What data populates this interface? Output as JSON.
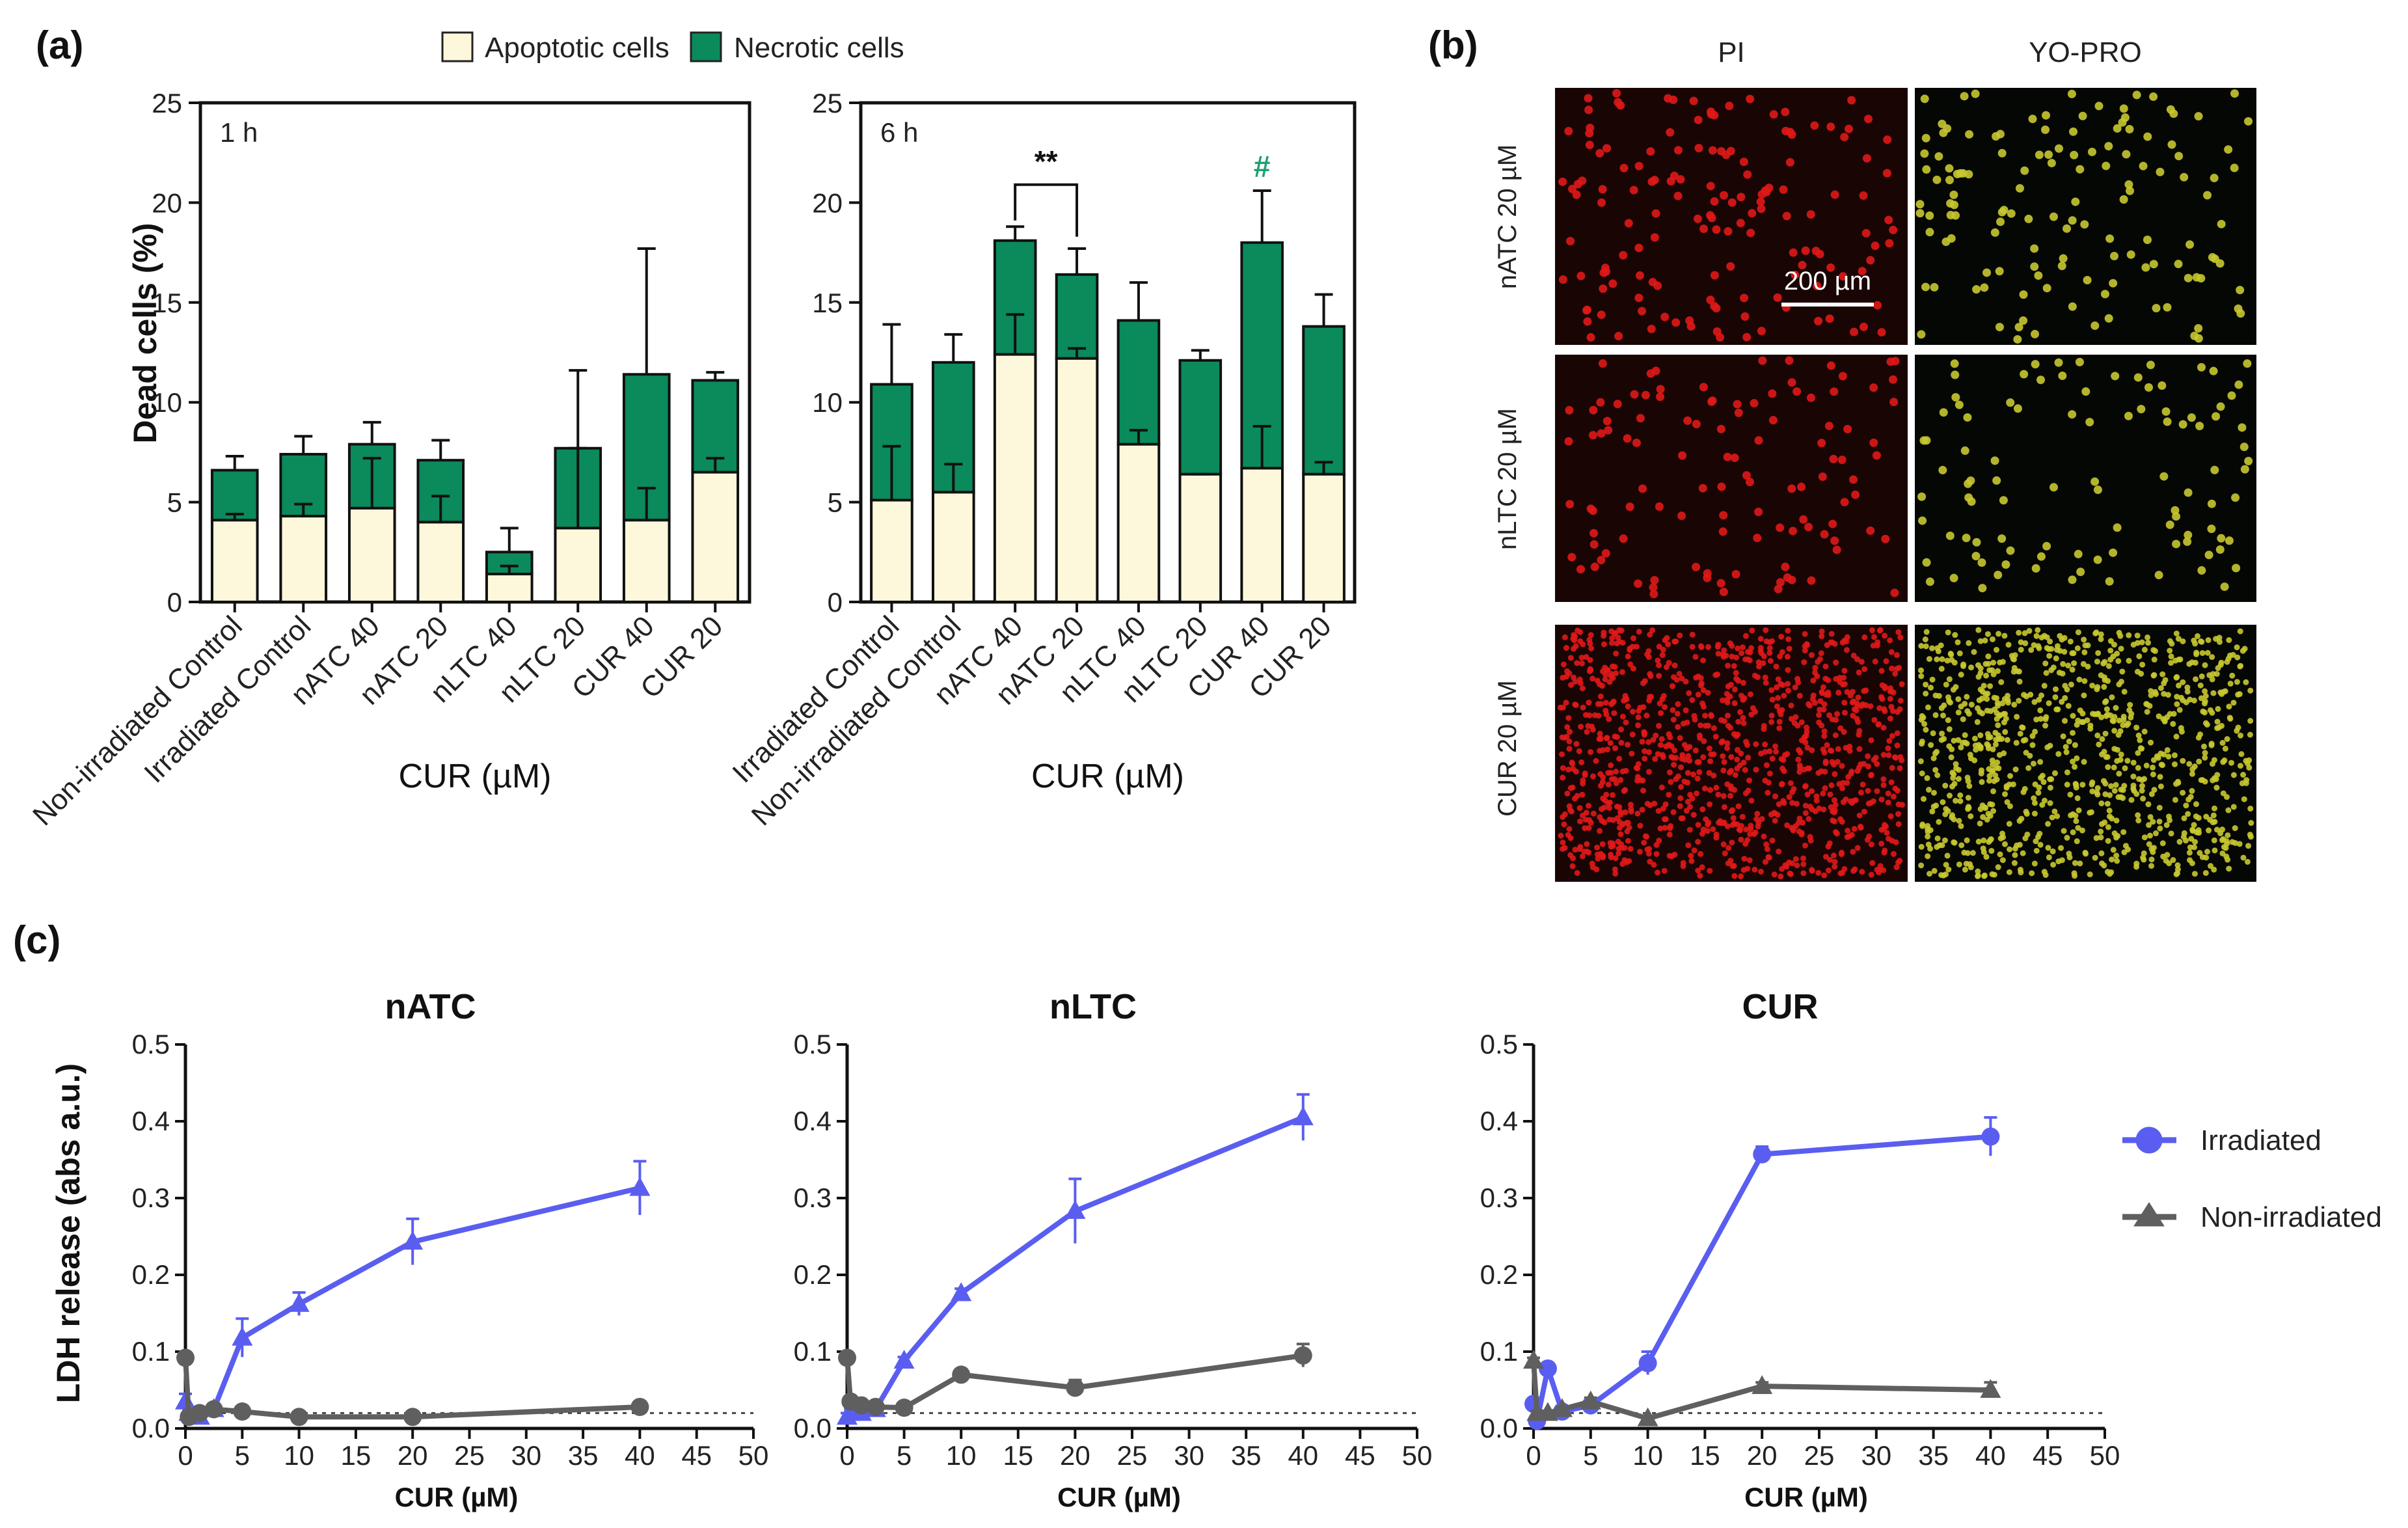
{
  "panels": {
    "a": "(a)",
    "b": "(b)",
    "c": "(c)"
  },
  "colors": {
    "apoptotic": "#fdf8dc",
    "necrotic": "#0b8a5c",
    "irradiated": "#5a5ef0",
    "non_irradiated": "#5f5f5f",
    "hash_mark": "#20a070"
  },
  "legend_a": {
    "apoptotic": "Apoptotic cells",
    "necrotic": "Necrotic cells"
  },
  "legend_c": {
    "irradiated": "Irradiated",
    "non_irradiated": "Non-irradiated"
  },
  "chart_data": [
    {
      "id": "a1",
      "type": "bar",
      "stacked": true,
      "annotation": "1 h",
      "categories": [
        "Non-irradiated Control",
        "Irradiated Control",
        "nATC 40",
        "nATC 20",
        "nLTC 40",
        "nLTC 20",
        "CUR 40",
        "CUR 20"
      ],
      "series": [
        {
          "name": "Apoptotic cells",
          "values": [
            4.1,
            4.3,
            4.7,
            4.0,
            1.4,
            3.7,
            4.1,
            6.5
          ],
          "errors": [
            0.3,
            0.6,
            2.5,
            1.3,
            0.4,
            4.0,
            1.6,
            0.7
          ]
        },
        {
          "name": "Necrotic cells",
          "values": [
            2.5,
            3.1,
            3.2,
            3.1,
            1.1,
            4.0,
            7.3,
            4.6
          ],
          "errors": [
            0.7,
            0.9,
            1.1,
            1.0,
            1.2,
            3.9,
            6.3,
            0.4
          ]
        }
      ],
      "xlabel": "CUR (µM)",
      "ylabel": "Dead cells (%)",
      "ylim": [
        0,
        25
      ],
      "yticks": [
        0,
        5,
        10,
        15,
        20,
        25
      ]
    },
    {
      "id": "a2",
      "type": "bar",
      "stacked": true,
      "annotation": "6 h",
      "categories": [
        "Irradiated Control",
        "Non-irradiated Control",
        "nATC 40",
        "nATC 20",
        "nLTC 40",
        "nLTC 20",
        "CUR 40",
        "CUR 20"
      ],
      "series": [
        {
          "name": "Apoptotic cells",
          "values": [
            5.1,
            5.5,
            12.4,
            12.2,
            7.9,
            6.4,
            6.7,
            6.4
          ],
          "errors": [
            2.7,
            1.4,
            2.0,
            0.5,
            0.7,
            0.0,
            2.1,
            0.6
          ]
        },
        {
          "name": "Necrotic cells",
          "values": [
            5.8,
            6.5,
            5.7,
            4.2,
            6.2,
            5.7,
            11.3,
            7.4
          ],
          "errors": [
            3.0,
            1.4,
            0.7,
            1.3,
            1.9,
            0.5,
            2.6,
            1.6
          ]
        }
      ],
      "significance": {
        "bracket": [
          "nATC 40",
          "nATC 20"
        ],
        "label": "**",
        "hash": {
          "category": "CUR 40",
          "label": "#"
        }
      },
      "xlabel": "CUR (µM)",
      "ylabel": "",
      "ylim": [
        0,
        25
      ],
      "yticks": [
        0,
        5,
        10,
        15,
        20,
        25
      ]
    },
    {
      "id": "c1",
      "type": "line",
      "title": "nATC",
      "series": [
        {
          "name": "Irradiated",
          "marker": "triangle",
          "x": [
            0,
            0.3,
            1.25,
            2.5,
            5,
            10,
            20,
            40
          ],
          "y": [
            0.035,
            0.02,
            0.015,
            0.025,
            0.118,
            0.162,
            0.243,
            0.313
          ],
          "errors": [
            0.01,
            0.005,
            0.005,
            0.005,
            0.025,
            0.015,
            0.03,
            0.035
          ]
        },
        {
          "name": "Non-irradiated",
          "marker": "circle",
          "x": [
            0,
            0.3,
            1.25,
            2.5,
            5,
            10,
            20,
            40
          ],
          "y": [
            0.092,
            0.015,
            0.02,
            0.025,
            0.022,
            0.015,
            0.015,
            0.028
          ],
          "errors": [
            0.005,
            0.003,
            0.003,
            0.003,
            0.003,
            0.003,
            0.003,
            0.004
          ]
        }
      ],
      "baseline": 0.02,
      "xlabel": "CUR (µM)",
      "ylabel": "LDH release (abs a.u.)",
      "xlim": [
        0,
        50
      ],
      "ylim": [
        0,
        0.5
      ],
      "xticks": [
        0,
        5,
        10,
        15,
        20,
        25,
        30,
        35,
        40,
        45,
        50
      ],
      "yticks": [
        "0.0",
        "0.1",
        "0.2",
        "0.3",
        "0.4",
        "0.5"
      ]
    },
    {
      "id": "c2",
      "type": "line",
      "title": "nLTC",
      "series": [
        {
          "name": "Irradiated",
          "marker": "triangle",
          "x": [
            0,
            0.3,
            1.25,
            2.5,
            5,
            10,
            20,
            40
          ],
          "y": [
            0.015,
            0.02,
            0.02,
            0.025,
            0.088,
            0.176,
            0.283,
            0.405
          ],
          "errors": [
            0.005,
            0.005,
            0.005,
            0.005,
            0.005,
            0.006,
            0.042,
            0.03
          ]
        },
        {
          "name": "Non-irradiated",
          "marker": "circle",
          "x": [
            0,
            0.3,
            1.25,
            2.5,
            5,
            10,
            20,
            40
          ],
          "y": [
            0.092,
            0.035,
            0.03,
            0.028,
            0.027,
            0.07,
            0.053,
            0.095
          ],
          "errors": [
            0.005,
            0.005,
            0.005,
            0.005,
            0.004,
            0.006,
            0.01,
            0.015
          ]
        }
      ],
      "baseline": 0.02,
      "xlabel": "CUR (µM)",
      "ylabel": "",
      "xlim": [
        0,
        50
      ],
      "ylim": [
        0,
        0.5
      ],
      "xticks": [
        0,
        5,
        10,
        15,
        20,
        25,
        30,
        35,
        40,
        45,
        50
      ],
      "yticks": [
        "0.0",
        "0.1",
        "0.2",
        "0.3",
        "0.4",
        "0.5"
      ]
    },
    {
      "id": "c3",
      "type": "line",
      "title": "CUR",
      "series": [
        {
          "name": "Irradiated",
          "marker": "circle",
          "x": [
            0,
            0.3,
            1.25,
            2.5,
            5,
            10,
            20,
            40
          ],
          "y": [
            0.032,
            0.01,
            0.078,
            0.022,
            0.03,
            0.085,
            0.357,
            0.38
          ],
          "errors": [
            0.005,
            0.005,
            0.006,
            0.004,
            0.005,
            0.015,
            0.01,
            0.025
          ]
        },
        {
          "name": "Non-irradiated",
          "marker": "triangle",
          "x": [
            0,
            0.3,
            1.25,
            2.5,
            5,
            10,
            20,
            40
          ],
          "y": [
            0.088,
            0.02,
            0.02,
            0.025,
            0.035,
            0.013,
            0.055,
            0.05
          ],
          "errors": [
            0.004,
            0.003,
            0.003,
            0.003,
            0.005,
            0.003,
            0.005,
            0.01
          ]
        }
      ],
      "baseline": 0.02,
      "xlabel": "CUR (µM)",
      "ylabel": "",
      "xlim": [
        0,
        50
      ],
      "ylim": [
        0,
        0.5
      ],
      "xticks": [
        0,
        5,
        10,
        15,
        20,
        25,
        30,
        35,
        40,
        45,
        50
      ],
      "yticks": [
        "0.0",
        "0.1",
        "0.2",
        "0.3",
        "0.4",
        "0.5"
      ]
    }
  ],
  "microscopy": {
    "columns": [
      "PI",
      "YO-PRO"
    ],
    "rows": [
      "nATC 20 µM",
      "nLTC 20 µM",
      "CUR 20 µM"
    ],
    "scale_bar": "200 µm",
    "dot_colors": {
      "PI": "#e01818",
      "YO-PRO": "#c8c830"
    }
  }
}
